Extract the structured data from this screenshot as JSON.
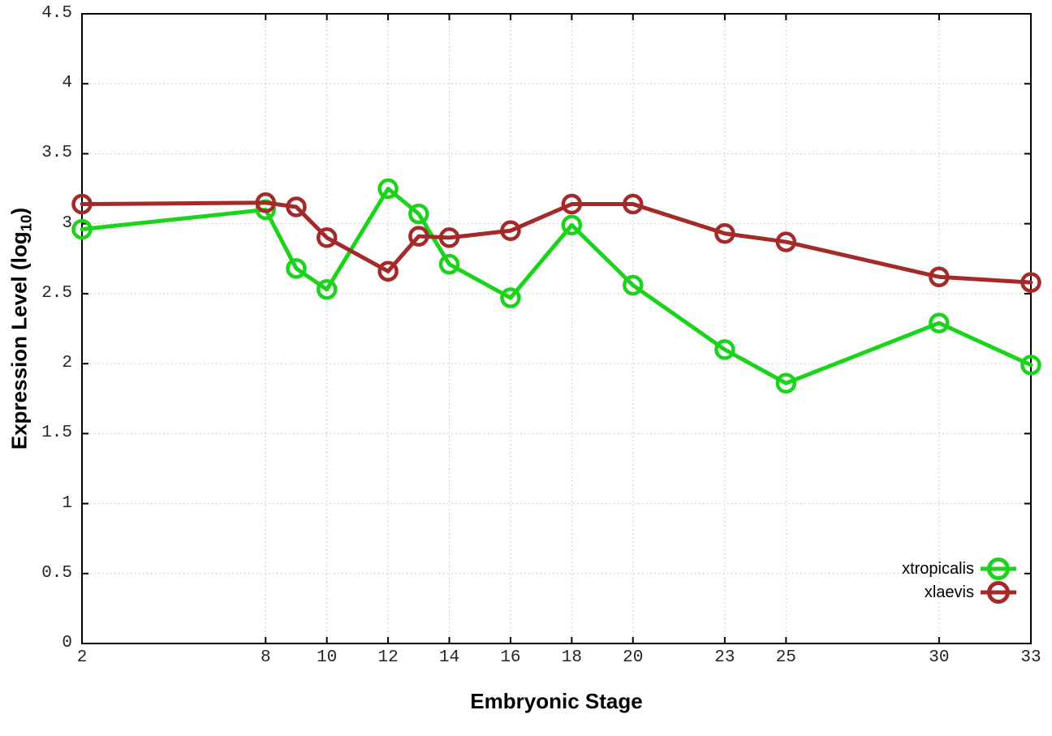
{
  "chart_data": {
    "type": "line",
    "title": "",
    "xlabel": "Embryonic Stage",
    "ylabel": {
      "main": "Expression Level (log",
      "sub": "10",
      "end": ")"
    },
    "xlim": [
      2,
      33
    ],
    "ylim": [
      0,
      4.5
    ],
    "xticks": [
      "2",
      "8",
      "10",
      "12",
      "14",
      "16",
      "18",
      "20",
      "23",
      "25",
      "30",
      "33"
    ],
    "yticks": [
      "0",
      "0.5",
      "1",
      "1.5",
      "2",
      "2.5",
      "3",
      "3.5",
      "4",
      "4.5"
    ],
    "grid": true,
    "legend_position": "inside-bottom-right",
    "marker": "open-circle",
    "x": [
      2,
      8,
      9,
      10,
      12,
      13,
      14,
      16,
      18,
      20,
      23,
      25,
      30,
      33
    ],
    "series": [
      {
        "name": "xtropicalis",
        "color": "#1cd31c",
        "values": [
          2.96,
          3.1,
          2.68,
          2.53,
          3.25,
          3.07,
          2.71,
          2.47,
          2.99,
          2.56,
          2.1,
          1.86,
          2.29,
          1.99
        ]
      },
      {
        "name": "xlaevis",
        "color": "#a42a2a",
        "values": [
          3.14,
          3.15,
          3.12,
          2.9,
          2.66,
          2.91,
          2.9,
          2.95,
          3.14,
          3.14,
          2.93,
          2.87,
          2.62,
          2.58
        ]
      }
    ],
    "colors": {
      "background": "#ffffff",
      "border": "#000000",
      "grid": "#bdbdbd",
      "tick_text": "#262626"
    }
  }
}
